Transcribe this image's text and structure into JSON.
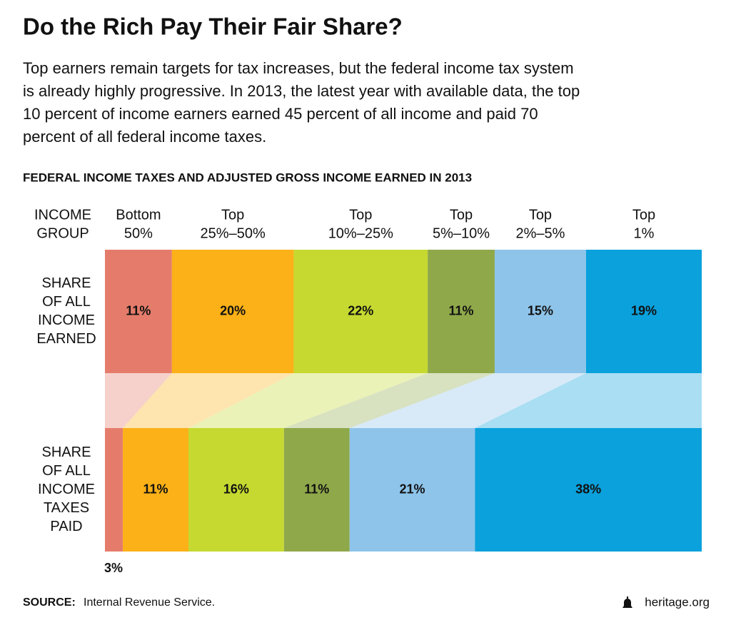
{
  "chart_data": {
    "type": "stacked-share",
    "title": "Do the Rich Pay Their Fair Share?",
    "subtitle": [
      "Top earners remain targets for tax increases, but the federal income tax system",
      "is already highly progressive. In 2013, the latest year with available data, the top",
      "10 percent of income earners earned 45 percent of all income and paid 70",
      "percent of all federal income taxes."
    ],
    "chart_title": "FEDERAL INCOME TAXES AND ADJUSTED GROSS INCOME EARNED IN 2013",
    "category_header": [
      "INCOME",
      "GROUP"
    ],
    "categories": [
      [
        "Bottom",
        "50%"
      ],
      [
        "Top",
        "25%–50%"
      ],
      [
        "Top",
        "10%–25%"
      ],
      [
        "Top",
        "5%–10%"
      ],
      [
        "Top",
        "2%–5%"
      ],
      [
        "Top",
        "1%"
      ]
    ],
    "colors": [
      "#e57c6b",
      "#fbb117",
      "#c5d930",
      "#8fa84a",
      "#8ec4ea",
      "#0aa1dc"
    ],
    "series": [
      {
        "name": [
          "SHARE",
          "OF ALL",
          "INCOME",
          "EARNED"
        ],
        "values": [
          11,
          20,
          22,
          11,
          15,
          19
        ],
        "value_labels": [
          "11%",
          "20%",
          "22%",
          "11%",
          "15%",
          "19%"
        ]
      },
      {
        "name": [
          "SHARE",
          "OF ALL",
          "INCOME",
          "TAXES",
          "PAID"
        ],
        "values": [
          3,
          11,
          16,
          11,
          21,
          38
        ],
        "value_labels": [
          "3%",
          "11%",
          "16%",
          "11%",
          "21%",
          "38%"
        ]
      }
    ],
    "source_label": "SOURCE:",
    "source": "Internal Revenue Service.",
    "credit": "heritage.org"
  }
}
